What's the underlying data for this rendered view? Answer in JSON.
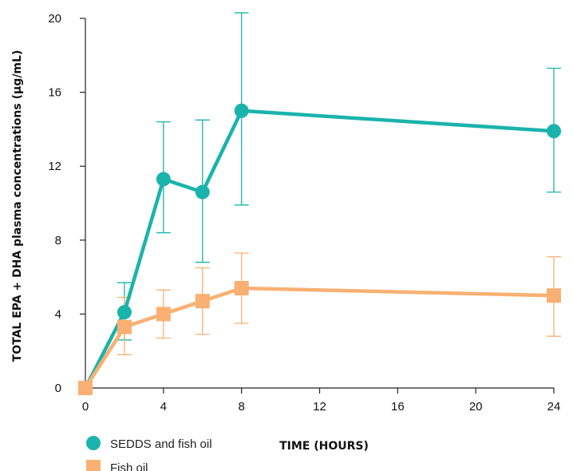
{
  "chart_data": {
    "type": "line",
    "title": "",
    "xlabel": "TIME (HOURS)",
    "ylabel": "TOTAL EPA + DHA plasma concentrations  (µg/mL)",
    "xlim": [
      0,
      24
    ],
    "ylim": [
      0,
      20
    ],
    "x_ticks": [
      0,
      4,
      8,
      12,
      16,
      20,
      24
    ],
    "y_ticks": [
      0,
      4,
      8,
      12,
      16,
      20
    ],
    "grid": false,
    "legend_position": "bottom-left",
    "series": [
      {
        "name": "SEDDS and fish oil",
        "color": "#1ab3ac",
        "marker": "circle",
        "x": [
          0,
          2,
          4,
          6,
          8,
          24
        ],
        "y": [
          0,
          4.1,
          11.3,
          10.6,
          15.0,
          13.9
        ],
        "error_upper": [
          0,
          5.7,
          14.4,
          14.5,
          20.3,
          17.3
        ],
        "error_lower": [
          0,
          2.6,
          8.4,
          6.8,
          9.9,
          10.6
        ]
      },
      {
        "name": "Fish oil",
        "color": "#f9b072",
        "marker": "square",
        "x": [
          0,
          2,
          4,
          6,
          8,
          24
        ],
        "y": [
          0,
          3.3,
          4.0,
          4.7,
          5.4,
          5.0
        ],
        "error_upper": [
          0,
          4.9,
          5.3,
          6.5,
          7.3,
          7.1
        ],
        "error_lower": [
          0,
          1.8,
          2.7,
          2.9,
          3.5,
          2.8
        ]
      }
    ]
  }
}
